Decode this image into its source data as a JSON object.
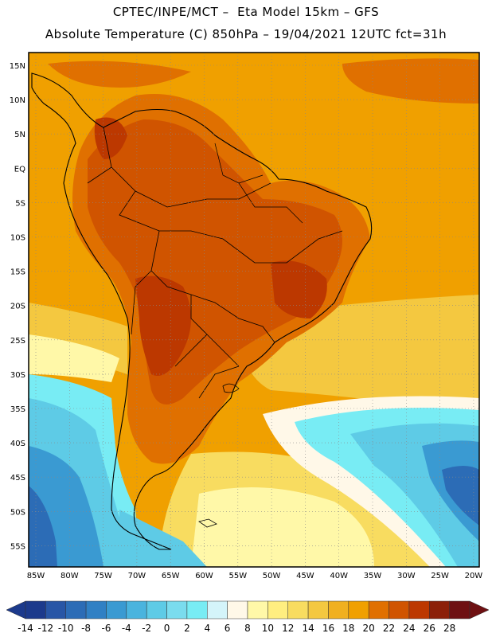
{
  "header": {
    "line1": "CPTEC/INPE/MCT –  Eta Model 15km – GFS",
    "line2": "Absolute Temperature (C) 850hPa – 19/04/2021 12UTC fct=31h"
  },
  "map": {
    "lat_labels": [
      "15N",
      "10N",
      "5N",
      "EQ",
      "5S",
      "10S",
      "15S",
      "20S",
      "25S",
      "30S",
      "35S",
      "40S",
      "45S",
      "50S",
      "55S"
    ],
    "lon_labels": [
      "85W",
      "80W",
      "75W",
      "70W",
      "65W",
      "60W",
      "55W",
      "50W",
      "45W",
      "40W",
      "35W",
      "30W",
      "25W",
      "20W"
    ],
    "background_color": "#f0a000",
    "region": "South America"
  },
  "colorbar": {
    "labels": [
      "-14",
      "-12",
      "-10",
      "-8",
      "-6",
      "-4",
      "-2",
      "0",
      "2",
      "4",
      "6",
      "8",
      "10",
      "12",
      "14",
      "16",
      "18",
      "20",
      "22",
      "24",
      "26",
      "28"
    ],
    "colors": [
      "#1c3a8c",
      "#2856a6",
      "#2c6cb6",
      "#3080c4",
      "#3a9ad2",
      "#4ab4de",
      "#5ecbe6",
      "#7adcee",
      "#78ecf4",
      "#d4f4fa",
      "#fff8e8",
      "#fff8a8",
      "#ffee80",
      "#f8dc60",
      "#f4c840",
      "#f0b020",
      "#f0a000",
      "#e07000",
      "#d05400",
      "#bc3800",
      "#8c2008",
      "#6e1012"
    ]
  }
}
